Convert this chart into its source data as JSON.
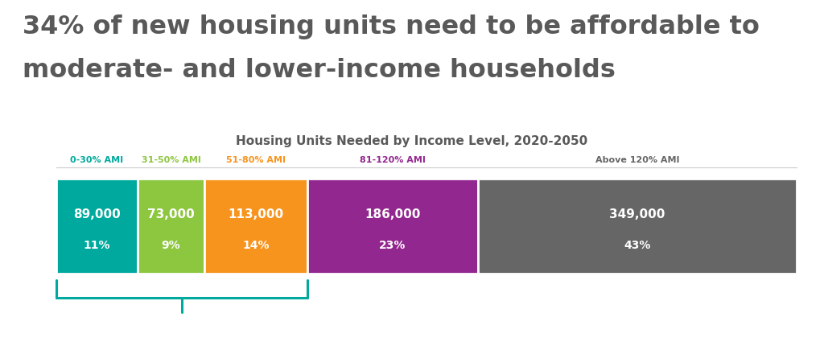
{
  "title_line1": "34% of new housing units need to be affordable to",
  "title_line2": "moderate- and lower-income households",
  "chart_title": "Housing Units Needed by Income Level, 2020-2050",
  "segments": [
    {
      "label": "0-30% AMI",
      "units": "89,000",
      "pct": "11%",
      "color": "#00A99D",
      "label_color": "#00A99D",
      "text_color": "#ffffff",
      "value": 89000
    },
    {
      "label": "31-50% AMI",
      "units": "73,000",
      "pct": "9%",
      "color": "#8DC63F",
      "label_color": "#8DC63F",
      "text_color": "#ffffff",
      "value": 73000
    },
    {
      "label": "51-80% AMI",
      "units": "113,000",
      "pct": "14%",
      "color": "#F7941D",
      "label_color": "#F7941D",
      "text_color": "#ffffff",
      "value": 113000
    },
    {
      "label": "81-120% AMI",
      "units": "186,000",
      "pct": "23%",
      "color": "#92278F",
      "label_color": "#92278F",
      "text_color": "#ffffff",
      "value": 186000
    },
    {
      "label": "Above 120% AMI",
      "units": "349,000",
      "pct": "43%",
      "color": "#666666",
      "label_color": "#666666",
      "text_color": "#ffffff",
      "value": 349000
    }
  ],
  "background_color": "#ffffff",
  "title_color": "#595959",
  "bracket_color": "#00A99D"
}
